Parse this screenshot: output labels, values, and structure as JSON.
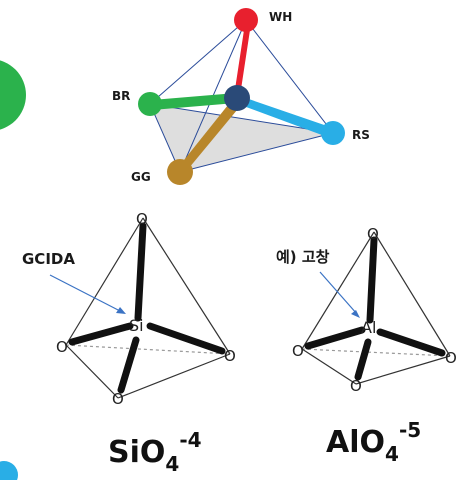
{
  "top_tetrahedron": {
    "nodes": {
      "wh": {
        "label": "WH",
        "color": "#e8202e"
      },
      "br": {
        "label": "BR",
        "color": "#2bb24c"
      },
      "rs": {
        "label": "RS",
        "color": "#29aee6"
      },
      "gg": {
        "label": "GG",
        "color": "#b8862a"
      },
      "center": {
        "color": "#2a4a78"
      }
    }
  },
  "side_circles": {
    "top_color": "#2bb24c",
    "bottom_color": "#29aee6"
  },
  "left_structure": {
    "callout": "GCIDA",
    "atoms": {
      "top": "O",
      "left": "O",
      "right": "O",
      "bottom": "O",
      "center": "Si"
    },
    "formula": {
      "base": "SiO",
      "subscript": "4",
      "charge": "-4"
    }
  },
  "right_structure": {
    "callout": "예) 고창",
    "atoms": {
      "top": "O",
      "left": "O",
      "right": "O",
      "bottom": "O",
      "center": "Al"
    },
    "formula": {
      "base": "AlO",
      "subscript": "4",
      "charge": "-5"
    }
  }
}
